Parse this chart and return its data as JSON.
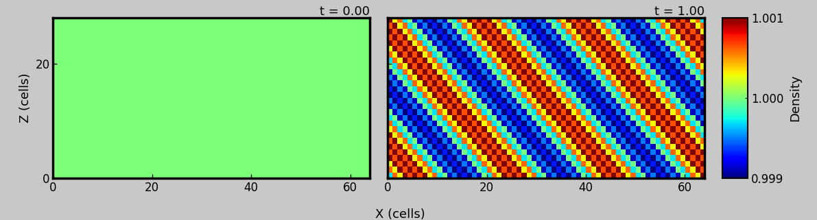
{
  "nx": 64,
  "nz": 28,
  "vmin": 0.999,
  "vmax": 1.001,
  "t_initial": 0.0,
  "t_final": 1.0,
  "xlabel": "X (cells)",
  "ylabel": "Z (cells)",
  "colorbar_label": "Density",
  "title_fontsize": 13,
  "label_fontsize": 13,
  "tick_fontsize": 12,
  "colorbar_tick_fontsize": 12,
  "xlim": [
    0,
    64
  ],
  "zlim": [
    0,
    28
  ],
  "xticks": [
    0,
    20,
    40,
    60
  ],
  "zticks": [
    0,
    20
  ],
  "figsize": [
    11.91,
    3.21
  ],
  "dpi": 100,
  "period": 20.0,
  "amplitude": 0.001,
  "noise_amplitude": 0.0003,
  "fig_facecolor": "#c8c8c8",
  "ax_facecolor": "#000000",
  "spine_linewidth": 2.5
}
